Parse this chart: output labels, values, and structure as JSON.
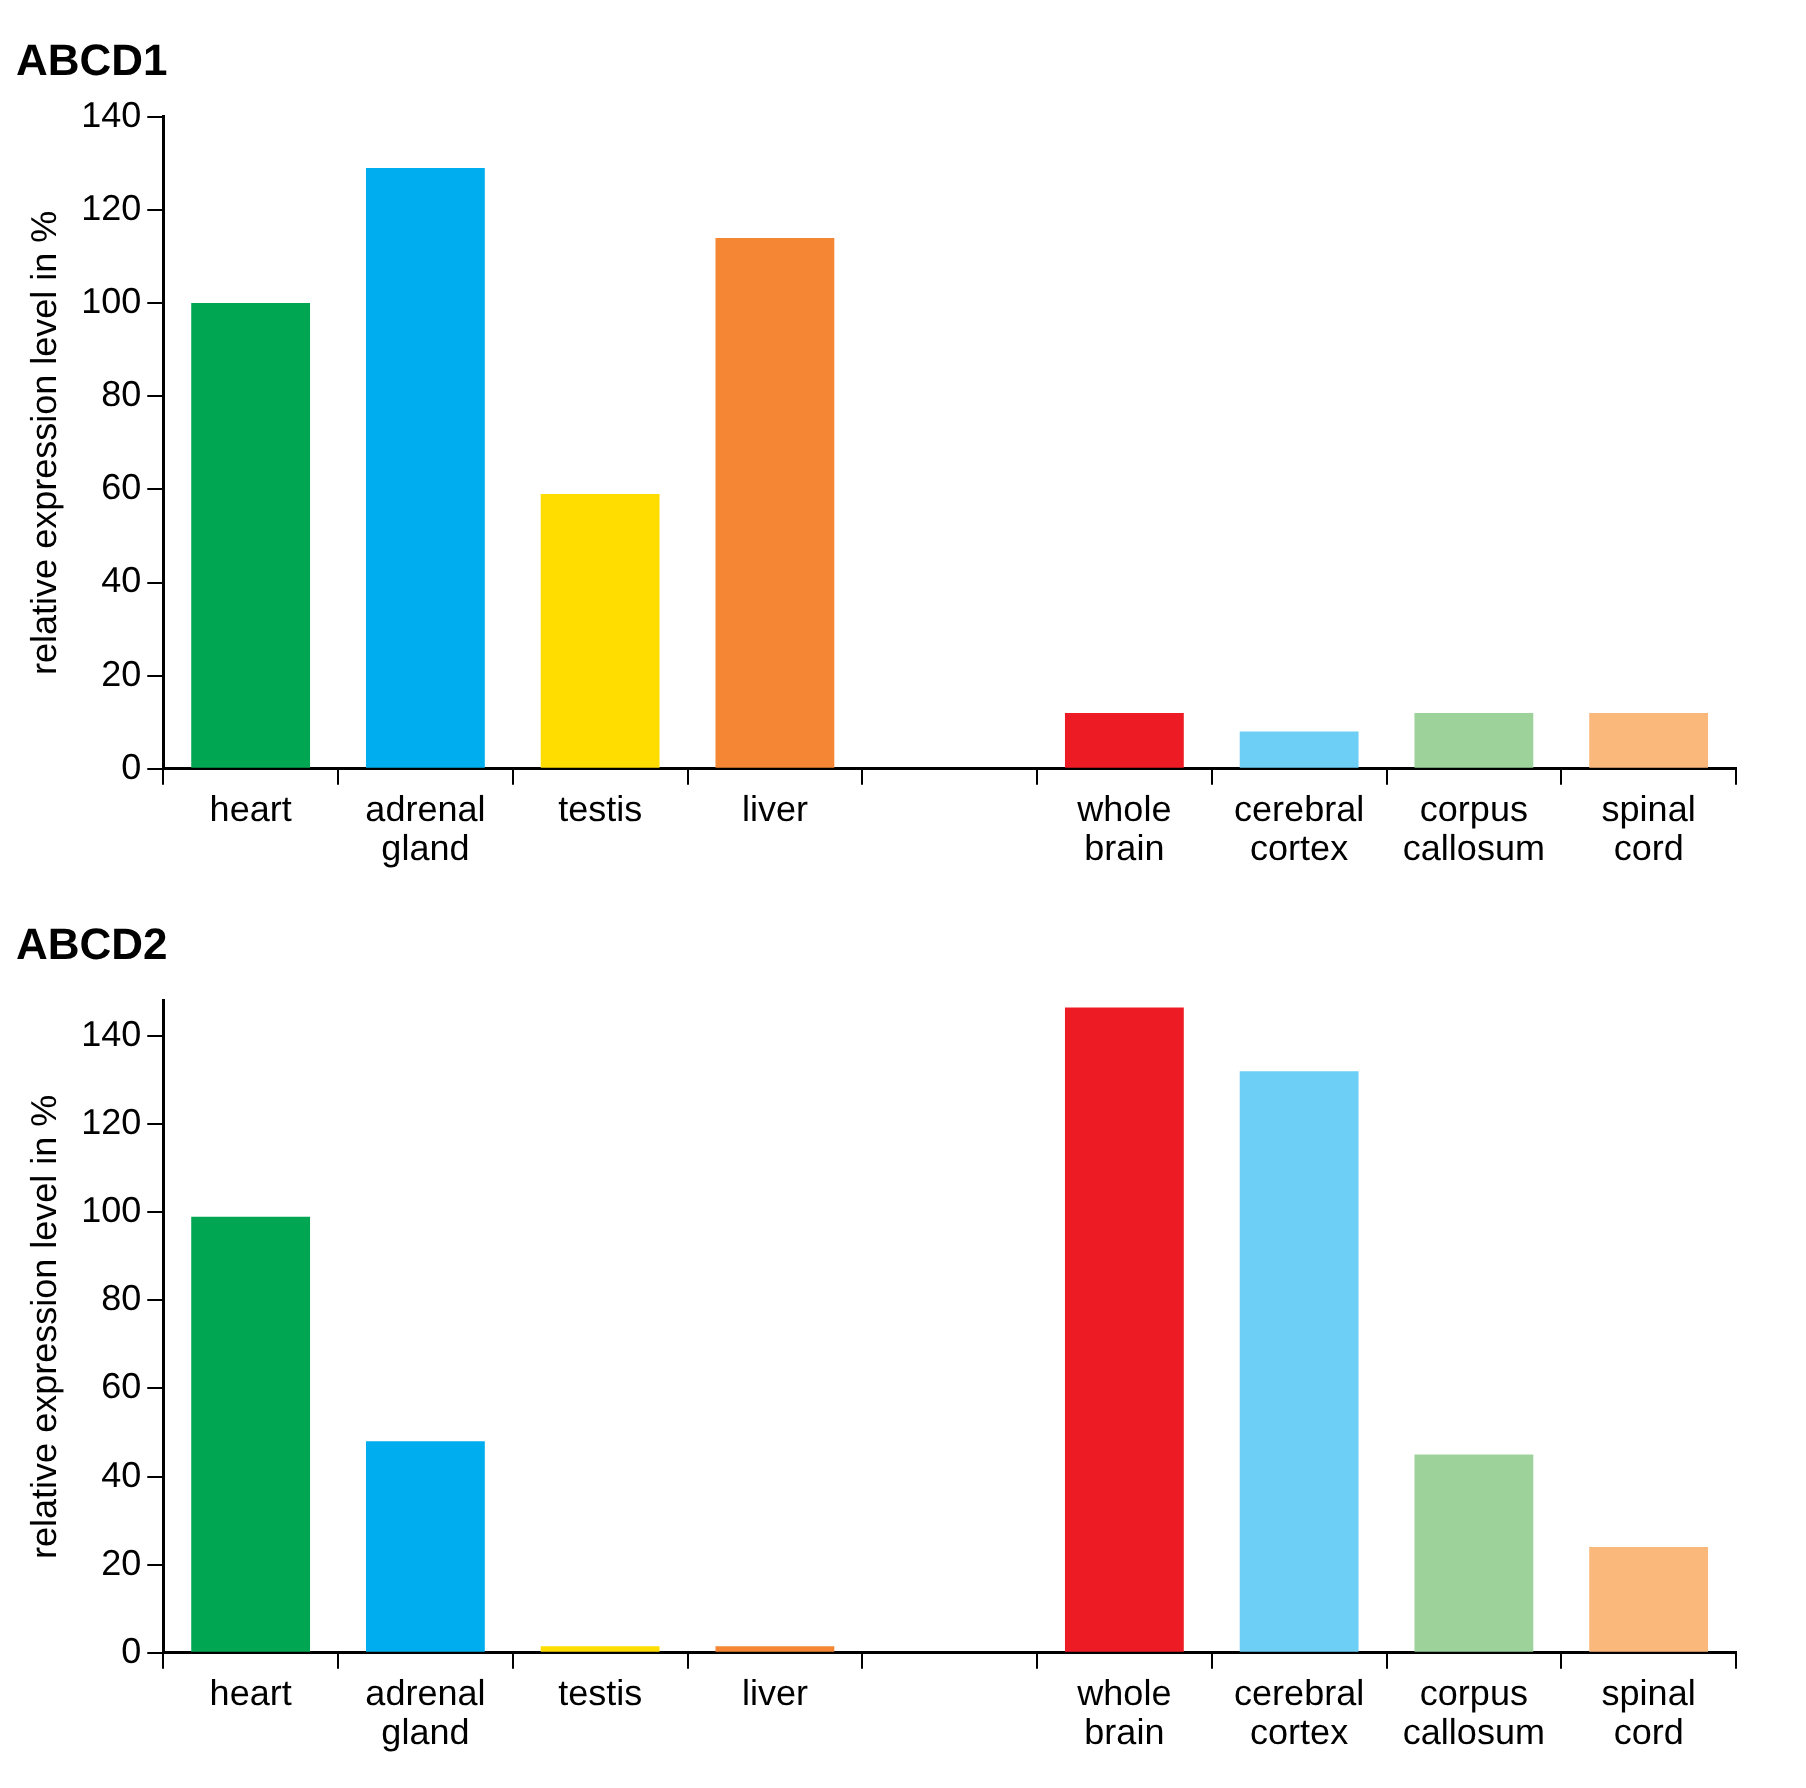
{
  "chart_data": [
    {
      "type": "bar",
      "title": "ABCD1",
      "ylabel": "relative expression level in %",
      "categories": [
        "heart",
        "adrenal gland",
        "testis",
        "liver",
        null,
        "whole brain",
        "cerebral cortex",
        "corpus callosum",
        "spinal cord"
      ],
      "values": [
        100,
        129,
        59,
        114,
        null,
        12,
        8,
        12,
        12
      ],
      "colors": [
        "#00a651",
        "#00aeef",
        "#ffdd00",
        "#f58634",
        "#ffffff",
        "#ed1c24",
        "#6dcff6",
        "#9dd39a",
        "#fbb87b"
      ],
      "ylim": [
        0,
        140
      ],
      "yticks": [
        0,
        20,
        40,
        60,
        80,
        100,
        120,
        140
      ],
      "grid": false,
      "legend": false
    },
    {
      "type": "bar",
      "title": "ABCD2",
      "ylabel": "relative expression level in %",
      "categories": [
        "heart",
        "adrenal gland",
        "testis",
        "liver",
        null,
        "whole brain",
        "cerebral cortex",
        "corpus callosum",
        "spinal cord"
      ],
      "values": [
        99,
        48,
        1.5,
        1.5,
        null,
        146.5,
        132,
        45,
        24
      ],
      "colors": [
        "#00a651",
        "#00aeef",
        "#ffdd00",
        "#f58634",
        "#ffffff",
        "#ed1c24",
        "#6dcff6",
        "#9dd39a",
        "#fbb87b"
      ],
      "ylim": [
        0,
        148
      ],
      "yticks": [
        0,
        20,
        40,
        60,
        80,
        100,
        120,
        140
      ],
      "grid": false,
      "legend": false
    }
  ]
}
